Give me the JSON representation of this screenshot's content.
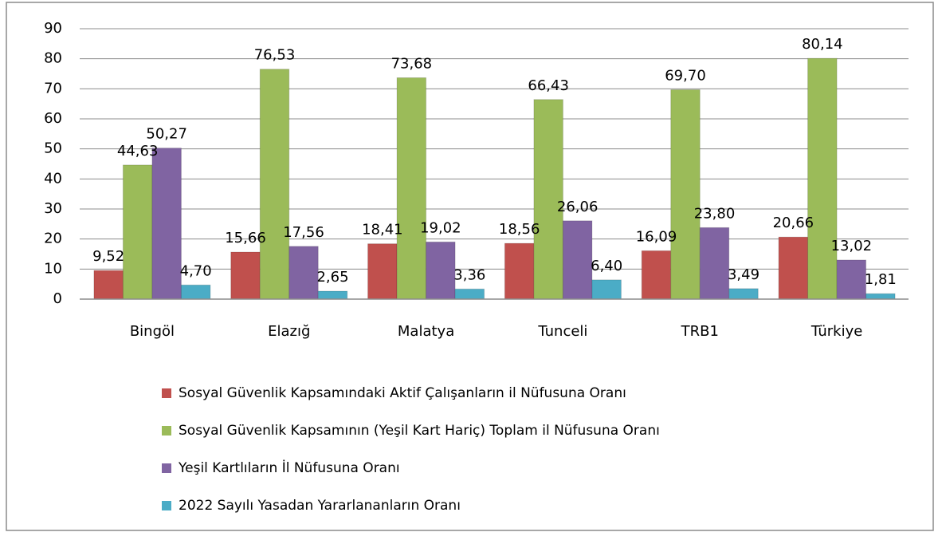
{
  "chart_data": {
    "type": "bar",
    "categories": [
      "Bingöl",
      "Elazığ",
      "Malatya",
      "Tunceli",
      "TRB1",
      "Türkiye"
    ],
    "series": [
      {
        "name": "Sosyal Güvenlik Kapsamındaki Aktif Çalışanların il Nüfusuna Oranı",
        "color": "#c0504d",
        "values": [
          9.52,
          15.66,
          18.41,
          18.56,
          16.09,
          20.66
        ],
        "value_labels": [
          "9,52",
          "15,66",
          "18,41",
          "18,56",
          "16,09",
          "20,66"
        ]
      },
      {
        "name": "Sosyal Güvenlik Kapsamının (Yeşil Kart Hariç) Toplam il Nüfusuna Oranı",
        "color": "#9bbb59",
        "values": [
          44.63,
          76.53,
          73.68,
          66.43,
          69.7,
          80.14
        ],
        "value_labels": [
          "44,63",
          "76,53",
          "73,68",
          "66,43",
          "69,70",
          "80,14"
        ]
      },
      {
        "name": "Yeşil Kartlıların İl Nüfusuna Oranı",
        "color": "#8064a2",
        "values": [
          50.27,
          17.56,
          19.02,
          26.06,
          23.8,
          13.02
        ],
        "value_labels": [
          "50,27",
          "17,56",
          "19,02",
          "26,06",
          "23,80",
          "13,02"
        ]
      },
      {
        "name": "2022 Sayılı Yasadan Yararlananların Oranı",
        "color": "#4bacc6",
        "values": [
          4.7,
          2.65,
          3.36,
          6.4,
          3.49,
          1.81
        ],
        "value_labels": [
          "4,70",
          "2,65",
          "3,36",
          "6,40",
          "3,49",
          "1,81"
        ]
      }
    ],
    "ylim": [
      0,
      90
    ],
    "yticks": [
      0,
      10,
      20,
      30,
      40,
      50,
      60,
      70,
      80,
      90
    ],
    "grid": true,
    "legend": "bottom"
  }
}
